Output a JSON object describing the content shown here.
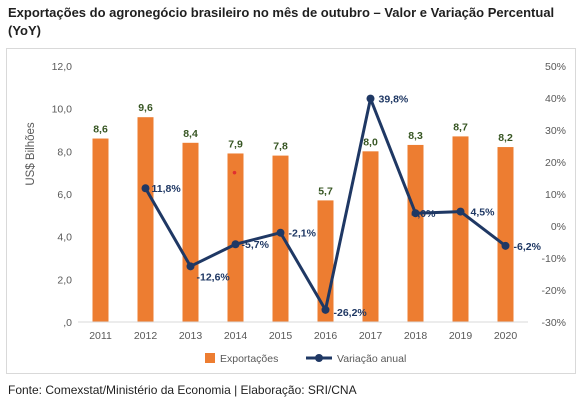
{
  "title": "Exportações do agronegócio brasileiro no mês de outubro – Valor e Variação Percentual (YoY)",
  "footer": "Fonte: Comexstat/Ministério da Economia | Elaboração: SRI/CNA",
  "colors": {
    "bar": "#ed7d31",
    "line": "#1f3864",
    "bar_label": "#375623",
    "axis_text": "#595959",
    "outlier_dot": "#e03030"
  },
  "chart_data": {
    "type": "bar",
    "categories": [
      "2011",
      "2012",
      "2013",
      "2014",
      "2015",
      "2016",
      "2017",
      "2018",
      "2019",
      "2020"
    ],
    "series": [
      {
        "name": "Exportações",
        "type": "bar",
        "axis": "left",
        "values": [
          8.6,
          9.6,
          8.4,
          7.9,
          7.8,
          5.7,
          8.0,
          8.3,
          8.7,
          8.2
        ],
        "labels": [
          "8,6",
          "9,6",
          "8,4",
          "7,9",
          "7,8",
          "5,7",
          "8,0",
          "8,3",
          "8,7",
          "8,2"
        ]
      },
      {
        "name": "Variação anual",
        "type": "line",
        "axis": "right",
        "values": [
          null,
          11.8,
          -12.6,
          -5.7,
          -2.1,
          -26.2,
          39.8,
          4.0,
          4.5,
          -6.2
        ],
        "labels": [
          "",
          "11,8%",
          "-12,6%",
          "-5,7%",
          "-2,1%",
          "-26,2%",
          "39,8%",
          "4,0%",
          "4,5%",
          "-6,2%"
        ]
      }
    ],
    "ylabel": "US$ Bilhões",
    "ylim": [
      0,
      12
    ],
    "y_ticks": [
      ",0",
      "2,0",
      "4,0",
      "6,0",
      "8,0",
      "10,0",
      "12,0"
    ],
    "y2lim": [
      -30,
      50
    ],
    "y2_ticks": [
      "-30%",
      "-20%",
      "-10%",
      "0%",
      "10%",
      "20%",
      "30%",
      "40%",
      "50%"
    ],
    "legend_position": "bottom",
    "grid": false
  }
}
